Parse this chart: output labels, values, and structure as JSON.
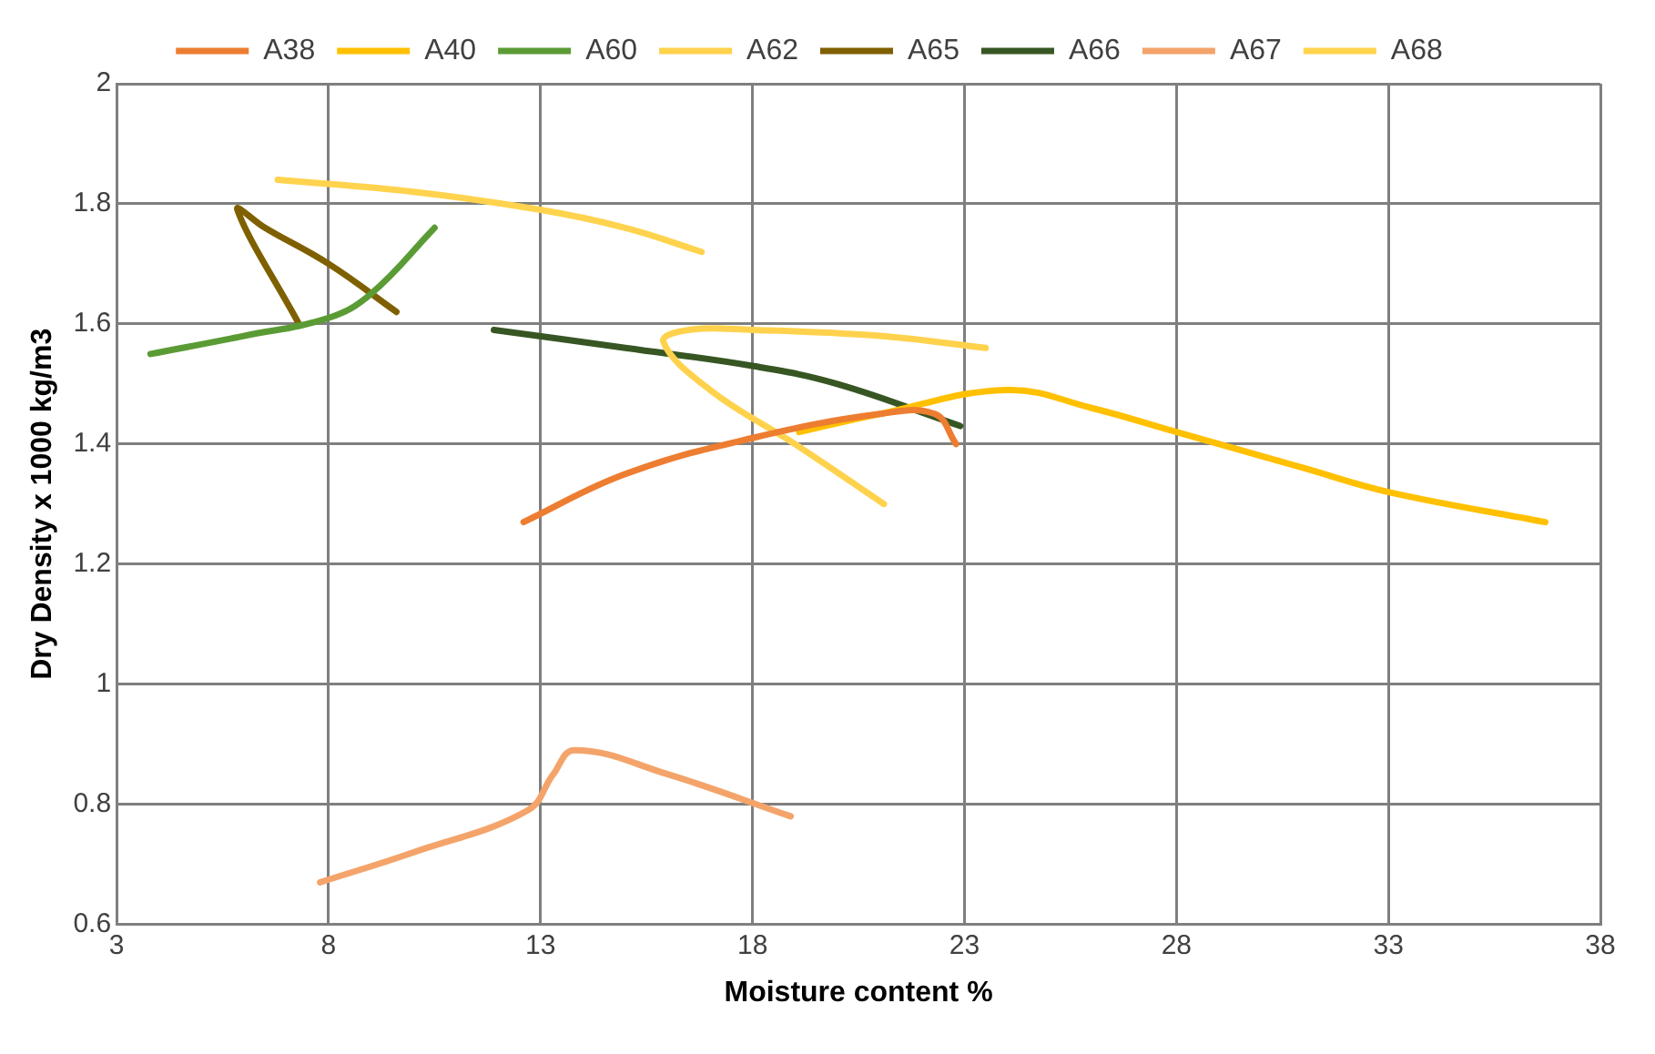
{
  "chart_data": {
    "type": "line",
    "xlabel": "Moisture content %",
    "ylabel": "Dry Density x 1000 kg/m3",
    "xlim": [
      3,
      38
    ],
    "xticks": [
      3,
      8,
      13,
      18,
      23,
      28,
      33,
      38
    ],
    "ylim": [
      0.6,
      2
    ],
    "yticks": [
      0.6,
      0.8,
      1,
      1.2,
      1.4,
      1.6,
      1.8,
      2
    ],
    "grid": true,
    "legend": "top",
    "marker": "none",
    "line_style": "solid",
    "series": [
      {
        "name": "A38",
        "color": "#ed7d31",
        "x": [
          12.6,
          15,
          18,
          21,
          22.3,
          22.8
        ],
        "values": [
          1.27,
          1.35,
          1.41,
          1.45,
          1.45,
          1.4
        ]
      },
      {
        "name": "A40",
        "color": "#ffc000",
        "x": [
          19.1,
          21,
          24,
          26,
          28,
          31,
          33,
          36.7
        ],
        "values": [
          1.42,
          1.45,
          1.49,
          1.46,
          1.42,
          1.36,
          1.32,
          1.27
        ]
      },
      {
        "name": "A60",
        "color": "#5b9b35",
        "x": [
          3.8,
          6,
          8,
          9,
          10.5
        ],
        "values": [
          1.55,
          1.58,
          1.61,
          1.65,
          1.76
        ]
      },
      {
        "name": "A62",
        "color": "#ffd24d",
        "x": [
          21.1,
          19,
          17,
          15.9,
          16.5,
          18,
          21,
          23.5
        ],
        "values": [
          1.3,
          1.4,
          1.49,
          1.57,
          1.59,
          1.59,
          1.58,
          1.56
        ]
      },
      {
        "name": "A65",
        "color": "#7f6000",
        "x": [
          7.3,
          5.85,
          6.5,
          8,
          9.6
        ],
        "values": [
          1.6,
          1.79,
          1.76,
          1.7,
          1.62
        ]
      },
      {
        "name": "A66",
        "color": "#375623",
        "x": [
          11.9,
          15,
          18,
          20,
          22.9
        ],
        "values": [
          1.59,
          1.56,
          1.53,
          1.5,
          1.43
        ]
      },
      {
        "name": "A67",
        "color": "#f4a46a",
        "x": [
          7.8,
          10,
          12.7,
          13.3,
          13.8,
          16,
          18.9
        ],
        "values": [
          0.67,
          0.72,
          0.79,
          0.85,
          0.89,
          0.85,
          0.78
        ]
      },
      {
        "name": "A68",
        "color": "#ffd34d",
        "x": [
          6.8,
          10,
          13,
          15,
          16.8
        ],
        "values": [
          1.84,
          1.82,
          1.79,
          1.76,
          1.72
        ]
      }
    ]
  }
}
